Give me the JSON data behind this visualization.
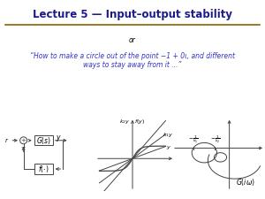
{
  "title": "Lecture 5 — Input–output stability",
  "title_color": "#1a1a8c",
  "title_fontsize": 8.5,
  "separator_color": "#8B6400",
  "or_text": "or",
  "quote_text": "“How to make a circle out of the point −1 + 0ι, and different\nways to stay away from it ...”",
  "quote_color": "#3333cc",
  "quote_fontsize": 5.5,
  "background_color": "#FFFFFF",
  "diagram_color": "#444444",
  "fig_width": 3.0,
  "fig_height": 2.25
}
